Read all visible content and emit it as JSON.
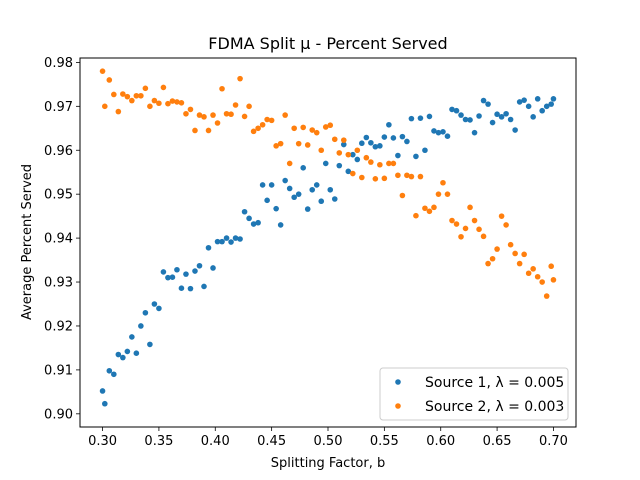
{
  "chart_data": {
    "type": "scatter",
    "title": "FDMA Split μ - Percent Served",
    "xlabel": "Splitting Factor, b",
    "ylabel": "Average Percent Served",
    "xlim": [
      0.28,
      0.72
    ],
    "ylim": [
      0.897,
      0.981
    ],
    "xticks": [
      0.3,
      0.35,
      0.4,
      0.45,
      0.5,
      0.55,
      0.6,
      0.65,
      0.7
    ],
    "xtick_labels": [
      "0.30",
      "0.35",
      "0.40",
      "0.45",
      "0.50",
      "0.55",
      "0.60",
      "0.65",
      "0.70"
    ],
    "yticks": [
      0.9,
      0.91,
      0.92,
      0.93,
      0.94,
      0.95,
      0.96,
      0.97,
      0.98
    ],
    "ytick_labels": [
      "0.90",
      "0.91",
      "0.92",
      "0.93",
      "0.94",
      "0.95",
      "0.96",
      "0.97",
      "0.98"
    ],
    "grid": false,
    "legend_position": "bottom-right",
    "series": [
      {
        "name": "Source 1, λ = 0.005",
        "color": "#1f77b4",
        "x": [
          0.3,
          0.302,
          0.306,
          0.31,
          0.314,
          0.318,
          0.322,
          0.326,
          0.33,
          0.334,
          0.338,
          0.342,
          0.346,
          0.35,
          0.354,
          0.358,
          0.362,
          0.366,
          0.37,
          0.374,
          0.378,
          0.382,
          0.386,
          0.39,
          0.394,
          0.398,
          0.402,
          0.406,
          0.41,
          0.414,
          0.418,
          0.422,
          0.426,
          0.43,
          0.434,
          0.438,
          0.442,
          0.446,
          0.45,
          0.454,
          0.458,
          0.462,
          0.466,
          0.47,
          0.474,
          0.478,
          0.482,
          0.486,
          0.49,
          0.494,
          0.498,
          0.502,
          0.506,
          0.51,
          0.514,
          0.518,
          0.522,
          0.526,
          0.53,
          0.534,
          0.538,
          0.542,
          0.546,
          0.55,
          0.554,
          0.558,
          0.562,
          0.566,
          0.57,
          0.574,
          0.578,
          0.582,
          0.586,
          0.59,
          0.594,
          0.598,
          0.602,
          0.606,
          0.61,
          0.614,
          0.618,
          0.622,
          0.626,
          0.63,
          0.634,
          0.638,
          0.642,
          0.646,
          0.65,
          0.654,
          0.658,
          0.662,
          0.666,
          0.67,
          0.674,
          0.678,
          0.682,
          0.686,
          0.69,
          0.694,
          0.698,
          0.7
        ],
        "y": [
          0.9052,
          0.9023,
          0.9098,
          0.909,
          0.9135,
          0.9128,
          0.9142,
          0.9175,
          0.9138,
          0.92,
          0.923,
          0.9158,
          0.925,
          0.924,
          0.9323,
          0.931,
          0.9311,
          0.9328,
          0.9286,
          0.9318,
          0.9285,
          0.9325,
          0.9337,
          0.929,
          0.9378,
          0.9332,
          0.9392,
          0.9392,
          0.94,
          0.9391,
          0.94,
          0.9398,
          0.946,
          0.9445,
          0.9432,
          0.9435,
          0.9521,
          0.9486,
          0.9521,
          0.9467,
          0.943,
          0.9531,
          0.9513,
          0.9493,
          0.95,
          0.956,
          0.9466,
          0.951,
          0.9521,
          0.9484,
          0.957,
          0.951,
          0.9489,
          0.9565,
          0.9613,
          0.9552,
          0.959,
          0.9579,
          0.9616,
          0.9629,
          0.9617,
          0.9608,
          0.961,
          0.963,
          0.9658,
          0.9628,
          0.9588,
          0.9631,
          0.962,
          0.9672,
          0.9586,
          0.9673,
          0.96,
          0.9677,
          0.9644,
          0.964,
          0.9642,
          0.9632,
          0.9693,
          0.969,
          0.968,
          0.967,
          0.9669,
          0.964,
          0.9678,
          0.9713,
          0.9705,
          0.9663,
          0.9682,
          0.9676,
          0.9683,
          0.967,
          0.9646,
          0.971,
          0.9714,
          0.97,
          0.9676,
          0.9717,
          0.969,
          0.97,
          0.9705,
          0.9717
        ]
      },
      {
        "name": "Source 2, λ = 0.003",
        "color": "#ff7f0e",
        "x": [
          0.3,
          0.302,
          0.306,
          0.31,
          0.314,
          0.318,
          0.322,
          0.326,
          0.33,
          0.334,
          0.338,
          0.342,
          0.346,
          0.35,
          0.354,
          0.358,
          0.362,
          0.366,
          0.37,
          0.374,
          0.378,
          0.382,
          0.386,
          0.39,
          0.394,
          0.398,
          0.402,
          0.406,
          0.41,
          0.414,
          0.418,
          0.422,
          0.426,
          0.43,
          0.434,
          0.438,
          0.442,
          0.446,
          0.45,
          0.454,
          0.458,
          0.462,
          0.466,
          0.47,
          0.474,
          0.478,
          0.482,
          0.486,
          0.49,
          0.494,
          0.498,
          0.502,
          0.506,
          0.51,
          0.514,
          0.518,
          0.522,
          0.526,
          0.53,
          0.534,
          0.538,
          0.542,
          0.546,
          0.55,
          0.554,
          0.558,
          0.562,
          0.566,
          0.57,
          0.574,
          0.578,
          0.582,
          0.586,
          0.59,
          0.594,
          0.598,
          0.602,
          0.606,
          0.61,
          0.614,
          0.618,
          0.622,
          0.626,
          0.63,
          0.634,
          0.638,
          0.642,
          0.646,
          0.65,
          0.654,
          0.658,
          0.662,
          0.666,
          0.67,
          0.674,
          0.678,
          0.682,
          0.686,
          0.69,
          0.694,
          0.698,
          0.7
        ],
        "y": [
          0.978,
          0.97,
          0.976,
          0.9727,
          0.9688,
          0.9728,
          0.9722,
          0.9713,
          0.9724,
          0.9724,
          0.9741,
          0.97,
          0.9713,
          0.9707,
          0.9743,
          0.9706,
          0.9712,
          0.971,
          0.9708,
          0.9683,
          0.9693,
          0.9645,
          0.968,
          0.9676,
          0.9645,
          0.968,
          0.9662,
          0.974,
          0.9683,
          0.9682,
          0.9703,
          0.9763,
          0.9677,
          0.97,
          0.9643,
          0.965,
          0.9658,
          0.967,
          0.9668,
          0.961,
          0.9615,
          0.968,
          0.957,
          0.965,
          0.9615,
          0.9652,
          0.9612,
          0.9646,
          0.964,
          0.96,
          0.9653,
          0.9657,
          0.9625,
          0.9594,
          0.9623,
          0.959,
          0.9547,
          0.96,
          0.9538,
          0.9583,
          0.9573,
          0.9535,
          0.9567,
          0.9536,
          0.957,
          0.957,
          0.9543,
          0.9497,
          0.9543,
          0.954,
          0.9451,
          0.954,
          0.9468,
          0.9461,
          0.947,
          0.95,
          0.9526,
          0.95,
          0.944,
          0.9432,
          0.9403,
          0.9422,
          0.947,
          0.944,
          0.942,
          0.9404,
          0.9342,
          0.9353,
          0.9375,
          0.945,
          0.943,
          0.9385,
          0.9365,
          0.9342,
          0.9363,
          0.932,
          0.933,
          0.9312,
          0.93,
          0.9268,
          0.9336,
          0.9305
        ]
      }
    ]
  }
}
